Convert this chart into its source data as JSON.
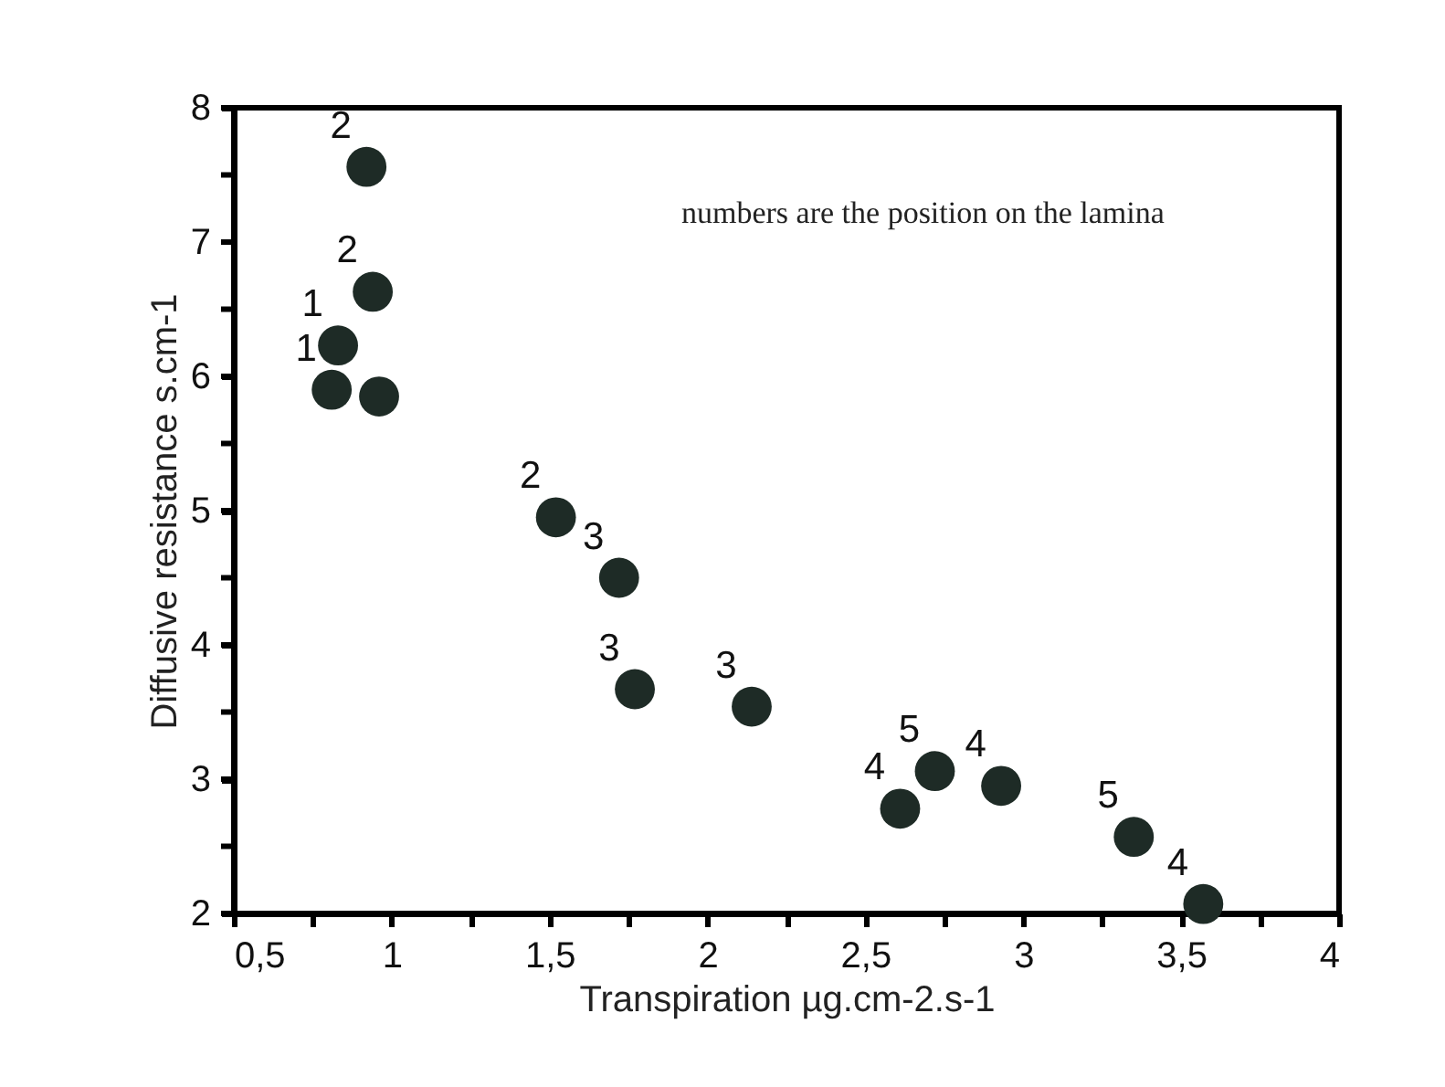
{
  "chart_data": {
    "type": "scatter",
    "xlabel": "Transpiration µg.cm-2.s-1",
    "ylabel": "Diffusive resistance s.cm-1",
    "x": [
      0.92,
      0.94,
      0.83,
      0.81,
      0.96,
      1.52,
      1.72,
      1.77,
      2.14,
      2.61,
      2.72,
      2.93,
      3.35,
      3.57
    ],
    "values": [
      7.56,
      6.63,
      6.23,
      5.9,
      5.85,
      4.95,
      4.5,
      3.67,
      3.54,
      2.78,
      3.06,
      2.95,
      2.57,
      2.07
    ],
    "color": "#1e2b26",
    "marker": "circle",
    "grid": false,
    "xlim": [
      0.5,
      4
    ],
    "ylim": [
      2,
      8
    ],
    "xticks": [
      {
        "value": 0.5,
        "label": "0,5"
      },
      {
        "value": 0.75,
        "label": null
      },
      1,
      {
        "value": 1.25,
        "label": null
      },
      {
        "value": 1.5,
        "label": "1,5"
      },
      {
        "value": 1.75,
        "label": null
      },
      2,
      {
        "value": 2.25,
        "label": null
      },
      {
        "value": 2.5,
        "label": "2,5"
      },
      {
        "value": 2.75,
        "label": null
      },
      3,
      {
        "value": 3.25,
        "label": null
      },
      {
        "value": 3.5,
        "label": "3,5"
      },
      {
        "value": 3.75,
        "label": null
      },
      4
    ],
    "yticks": [
      2,
      {
        "value": 2.5,
        "label": null
      },
      3,
      {
        "value": 3.5,
        "label": null
      },
      4,
      {
        "value": 4.5,
        "label": null
      },
      5,
      {
        "value": 5.5,
        "label": null
      },
      6,
      {
        "value": 6.5,
        "label": null
      },
      7,
      {
        "value": 7.5,
        "label": null
      },
      8
    ],
    "annotations": [
      "numbers are the position on the lamina",
      {
        "text": "2",
        "x": 0.92,
        "y": 7.56
      },
      {
        "text": "2",
        "x": 0.94,
        "y": 6.63
      },
      {
        "text": "1",
        "x": 0.83,
        "y": 6.23
      },
      {
        "text": "1",
        "x": 0.81,
        "y": 5.9
      },
      {
        "text": "2",
        "x": 1.52,
        "y": 4.95
      },
      {
        "text": "3",
        "x": 1.72,
        "y": 4.5
      },
      {
        "text": "3",
        "x": 1.77,
        "y": 3.67
      },
      {
        "text": "3",
        "x": 2.14,
        "y": 3.54
      },
      {
        "text": "4",
        "x": 2.61,
        "y": 2.78
      },
      {
        "text": "5",
        "x": 2.72,
        "y": 3.06
      },
      {
        "text": "4",
        "x": 2.93,
        "y": 2.95
      },
      {
        "text": "5",
        "x": 3.35,
        "y": 2.57
      },
      {
        "text": "4",
        "x": 3.57,
        "y": 2.07
      }
    ]
  }
}
